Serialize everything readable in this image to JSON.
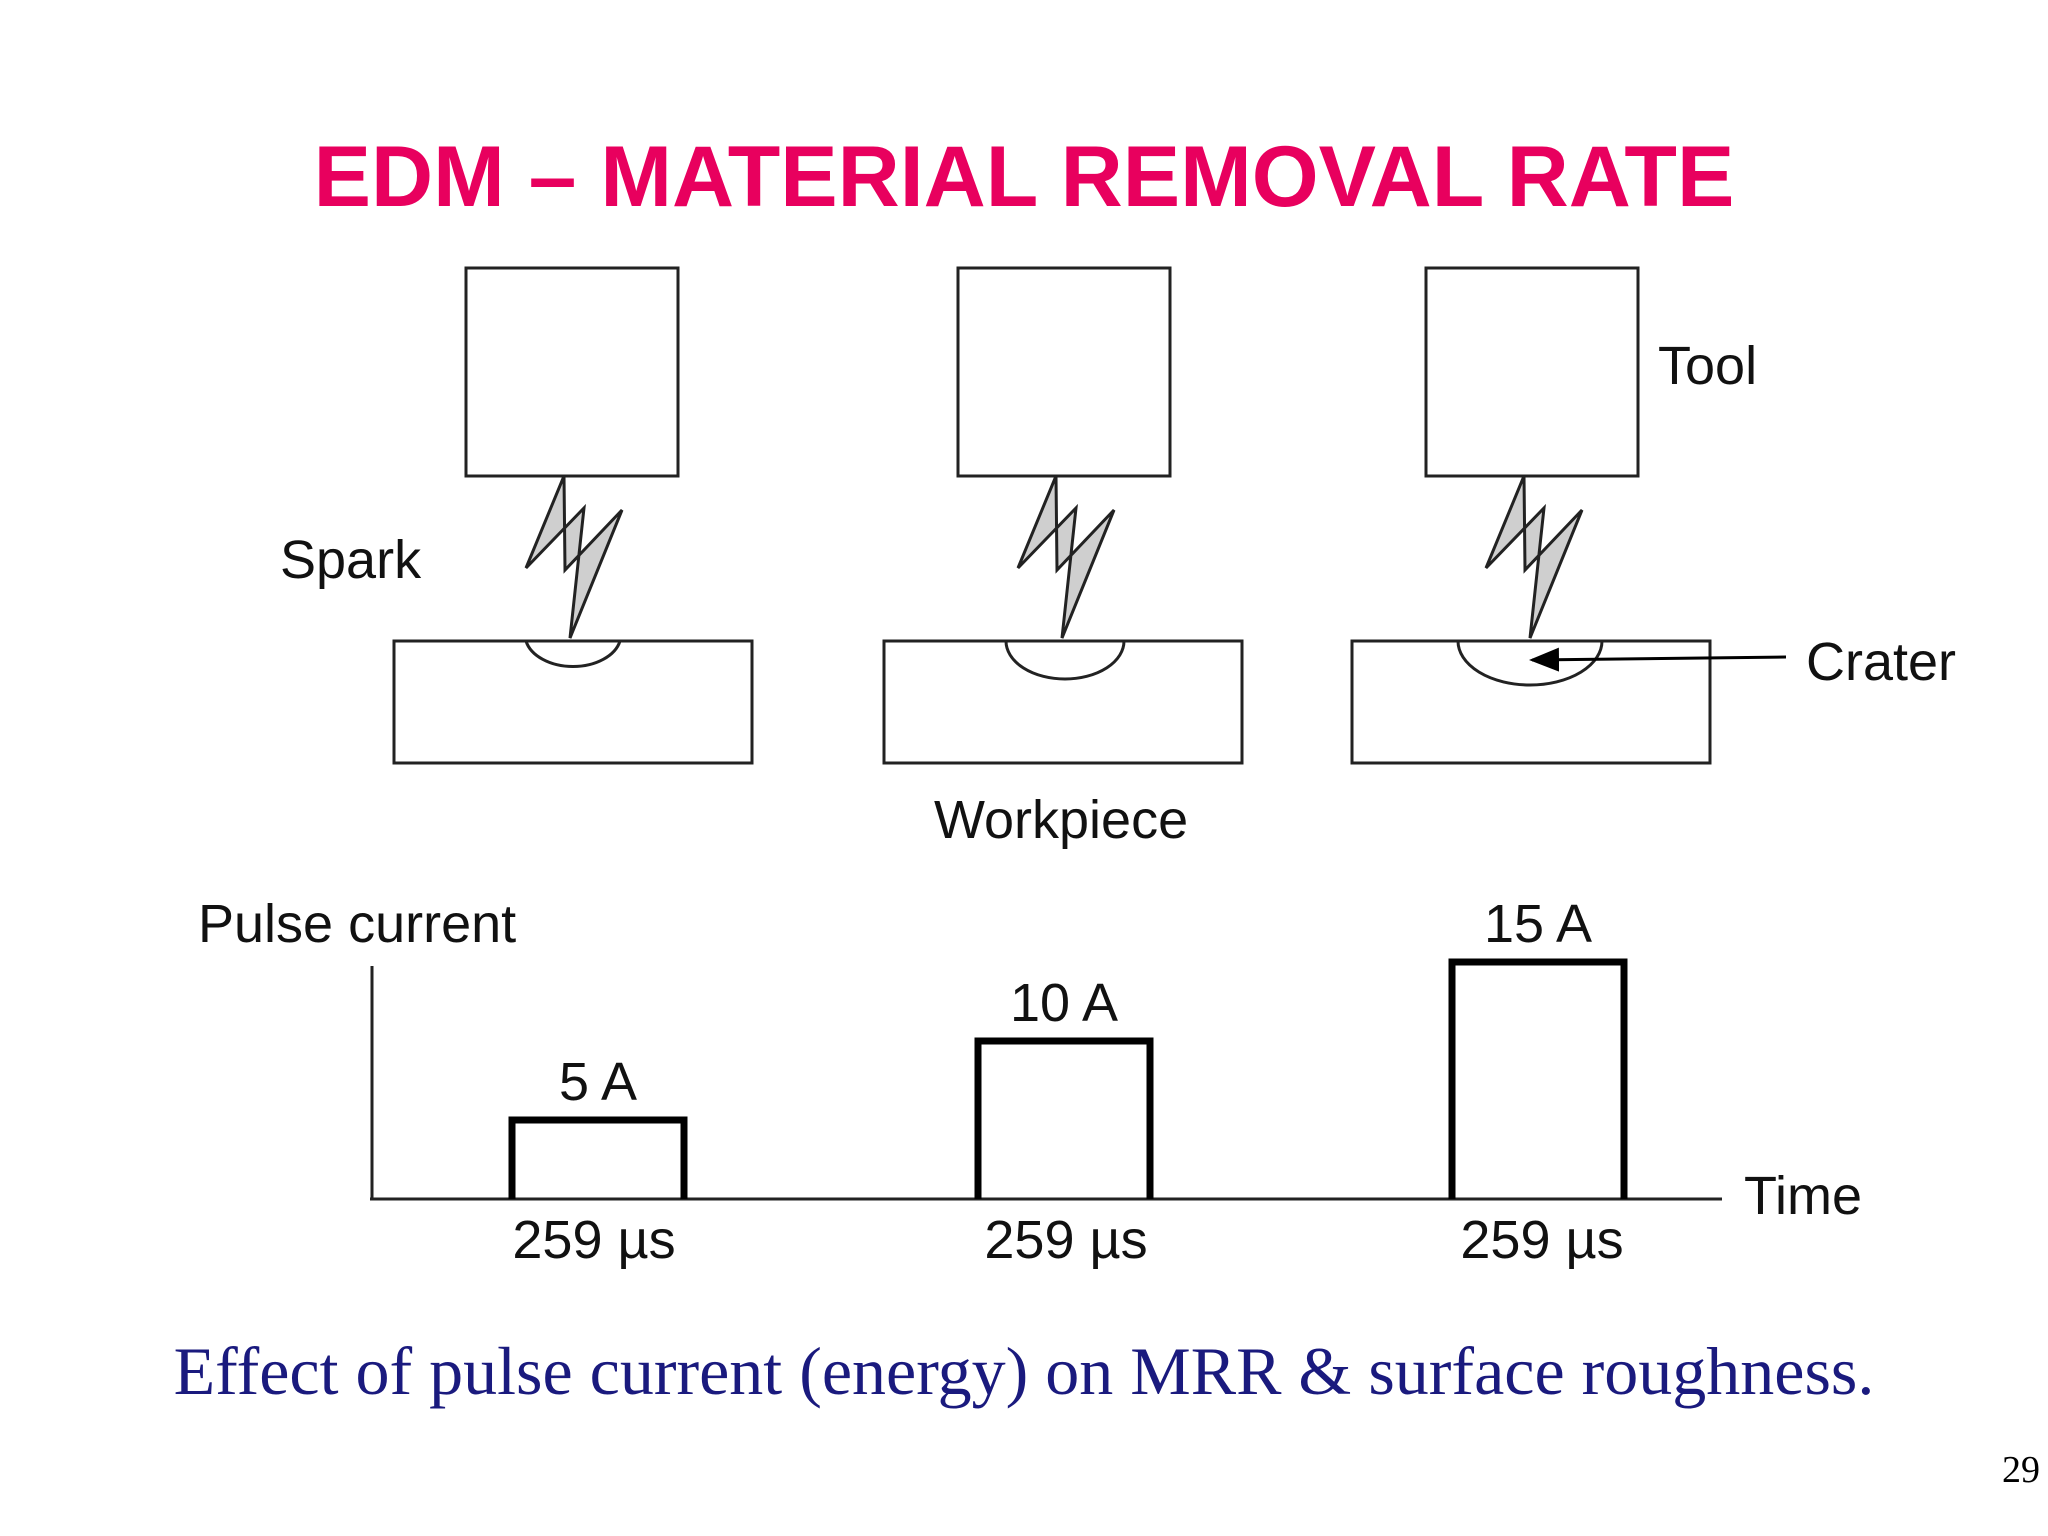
{
  "slide": {
    "title": "EDM – MATERIAL REMOVAL RATE",
    "caption": "Effect of pulse current (energy) on MRR & surface roughness.",
    "page_number": "29"
  },
  "diagram": {
    "labels": {
      "tool": "Tool",
      "spark": "Spark",
      "crater": "Crater",
      "workpiece": "Workpiece",
      "y_axis": "Pulse current",
      "x_axis": "Time"
    },
    "pulses": [
      {
        "current_label": "5 A",
        "current": 5,
        "duration_label": "259 µs"
      },
      {
        "current_label": "10 A",
        "current": 10,
        "duration_label": "259 µs"
      },
      {
        "current_label": "15 A",
        "current": 15,
        "duration_label": "259 µs"
      }
    ]
  },
  "colors": {
    "title": "#e8005e",
    "caption": "#1a1a7e",
    "spark_fill": "#cfcfcf"
  }
}
